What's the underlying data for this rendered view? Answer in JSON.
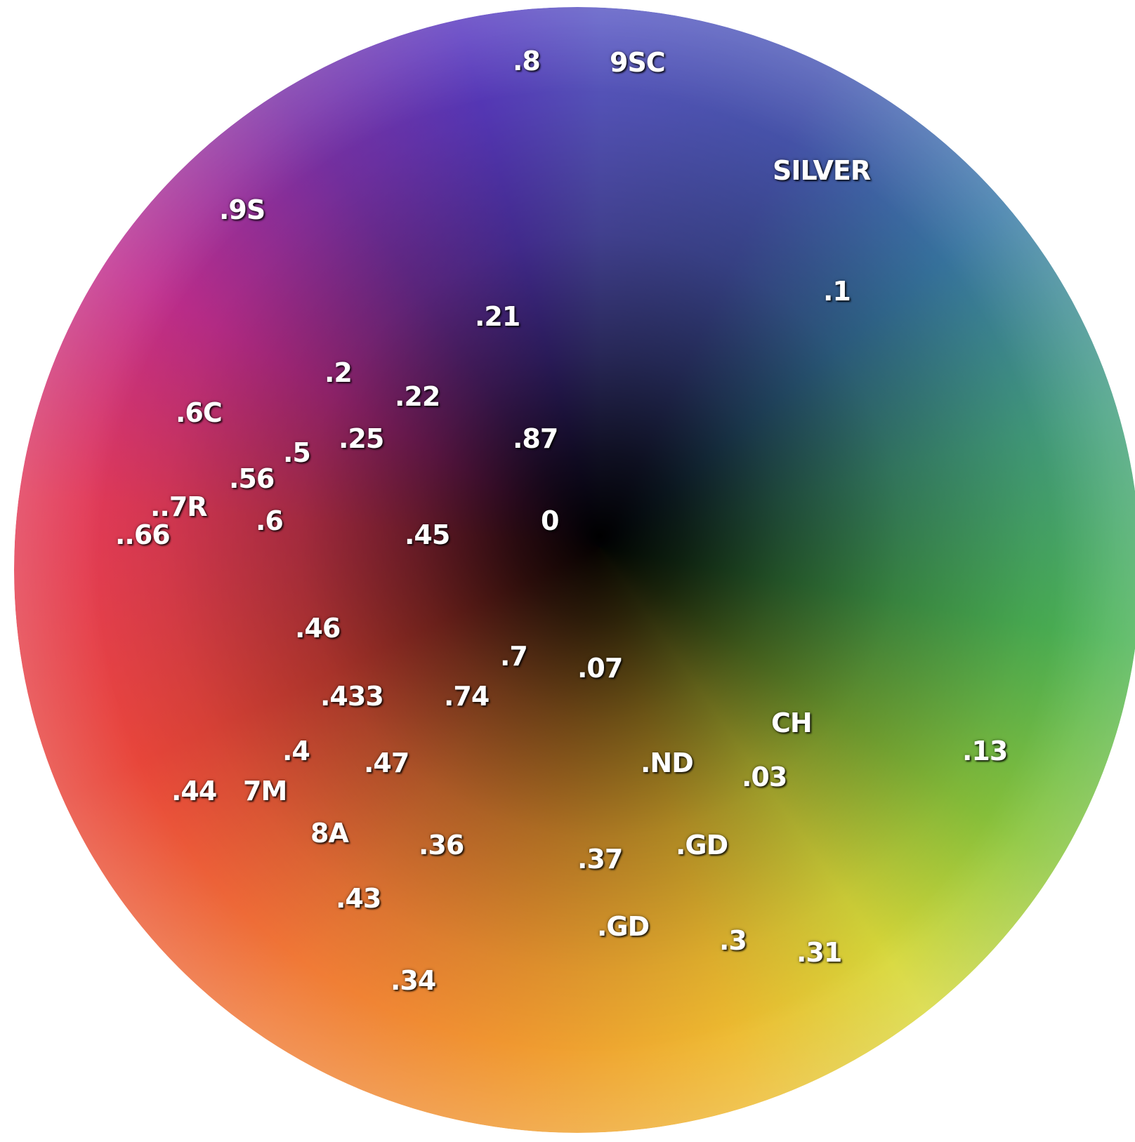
{
  "labels": [
    ".8",
    "9SC",
    "SILVER",
    ".9S",
    ".1",
    ".21",
    ".2",
    ".22",
    ".6C",
    ".25",
    ".87",
    ".5",
    ".56",
    "..7R",
    ".6",
    "..66",
    ".45",
    "0",
    ".46",
    ".7",
    ".07",
    ".433",
    ".74",
    "CH",
    ".13",
    ".4",
    ".47",
    ".ND",
    ".03",
    ".44",
    "7M",
    "8A",
    ".36",
    ".GD",
    ".37",
    ".43",
    ".GD",
    ".3",
    ".31",
    ".34"
  ]
}
